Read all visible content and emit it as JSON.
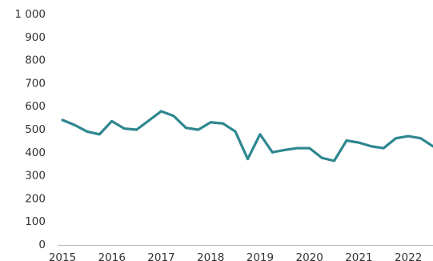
{
  "chart_data": {
    "type": "line",
    "title": "",
    "xlabel": "",
    "ylabel": "",
    "ylim": [
      0,
      1000
    ],
    "xlim": [
      2015.0,
      2022.5
    ],
    "grid": false,
    "legend": "none",
    "y_ticks": [
      {
        "value": 0,
        "label": "0"
      },
      {
        "value": 100,
        "label": "100"
      },
      {
        "value": 200,
        "label": "200"
      },
      {
        "value": 300,
        "label": "300"
      },
      {
        "value": 400,
        "label": "400"
      },
      {
        "value": 500,
        "label": "500"
      },
      {
        "value": 600,
        "label": "600"
      },
      {
        "value": 700,
        "label": "700"
      },
      {
        "value": 800,
        "label": "800"
      },
      {
        "value": 900,
        "label": "900"
      },
      {
        "value": 1000,
        "label": "1 000"
      }
    ],
    "x_ticks": [
      {
        "value": 2015,
        "label": "2015"
      },
      {
        "value": 2016,
        "label": "2016"
      },
      {
        "value": 2017,
        "label": "2017"
      },
      {
        "value": 2018,
        "label": "2018"
      },
      {
        "value": 2019,
        "label": "2019"
      },
      {
        "value": 2020,
        "label": "2020"
      },
      {
        "value": 2021,
        "label": "2021"
      },
      {
        "value": 2022,
        "label": "2022"
      }
    ],
    "series": [
      {
        "color": "#2e8790",
        "x": [
          2015.0,
          2015.25,
          2015.5,
          2015.75,
          2016.0,
          2016.25,
          2016.5,
          2016.75,
          2017.0,
          2017.25,
          2017.5,
          2017.75,
          2018.0,
          2018.25,
          2018.5,
          2018.75,
          2019.0,
          2019.25,
          2019.5,
          2019.75,
          2020.0,
          2020.25,
          2020.5,
          2020.75,
          2021.0,
          2021.25,
          2021.5,
          2021.75,
          2022.0,
          2022.25,
          2022.5
        ],
        "values": [
          542,
          520,
          492,
          480,
          537,
          505,
          500,
          540,
          580,
          560,
          508,
          500,
          532,
          527,
          492,
          373,
          480,
          402,
          412,
          420,
          420,
          378,
          365,
          453,
          444,
          428,
          420,
          463,
          472,
          463,
          428
        ]
      }
    ]
  }
}
